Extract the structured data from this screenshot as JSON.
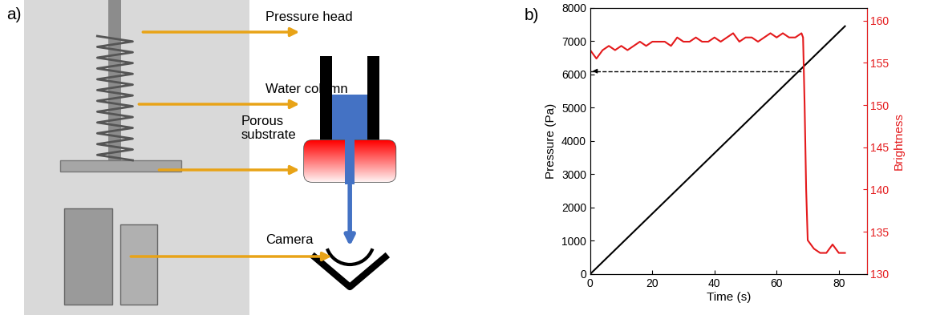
{
  "diagram": {
    "panel_label": "a)",
    "labels": [
      "Pressure head",
      "Water column",
      "Porous\nsubstrate",
      "Camera"
    ]
  },
  "chart_data": {
    "type": "line",
    "panel_label": "b)",
    "x_label": "Time (s)",
    "y_label": "Pressure (Pa)",
    "y2_label": "Brightness",
    "xlim": [
      0,
      89
    ],
    "xticks": [
      0,
      20,
      40,
      60,
      80
    ],
    "ylim": [
      0,
      8000
    ],
    "yticks": [
      0,
      1000,
      2000,
      3000,
      4000,
      5000,
      6000,
      7000,
      8000
    ],
    "y2lim": [
      130,
      161.5
    ],
    "y2ticks": [
      130,
      135,
      140,
      145,
      150,
      155,
      160
    ],
    "series": [
      {
        "name": "Pressure (Pa)",
        "color": "#000000",
        "line_style": "solid",
        "x": [
          0,
          82
        ],
        "values": [
          0,
          7450
        ]
      },
      {
        "name": "Brightness",
        "color": "#e41a1c",
        "line_style": "solid",
        "axis": "y2",
        "x": [
          0,
          2,
          4,
          6,
          8,
          10,
          12,
          14,
          16,
          18,
          20,
          22,
          24,
          26,
          28,
          30,
          32,
          34,
          36,
          38,
          40,
          42,
          44,
          46,
          48,
          50,
          52,
          54,
          56,
          58,
          60,
          62,
          64,
          66,
          68,
          68.5,
          69,
          69.5,
          70,
          72,
          74,
          76,
          78,
          80,
          82
        ],
        "values": [
          156.5,
          155.5,
          156.5,
          157,
          156.5,
          157,
          156.5,
          157,
          157.5,
          157,
          157.5,
          157.5,
          157.5,
          157,
          158,
          157.5,
          157.5,
          158,
          157.5,
          157.5,
          158,
          157.5,
          158,
          158.5,
          157.5,
          158,
          158,
          157.5,
          158,
          158.5,
          158,
          158.5,
          158,
          158,
          158.5,
          158,
          150,
          140,
          134,
          133,
          132.5,
          132.5,
          133.5,
          132.5,
          132.5
        ]
      }
    ],
    "threshold": {
      "value": 6100,
      "x": [
        0,
        68
      ],
      "line_style": "dashed"
    }
  }
}
